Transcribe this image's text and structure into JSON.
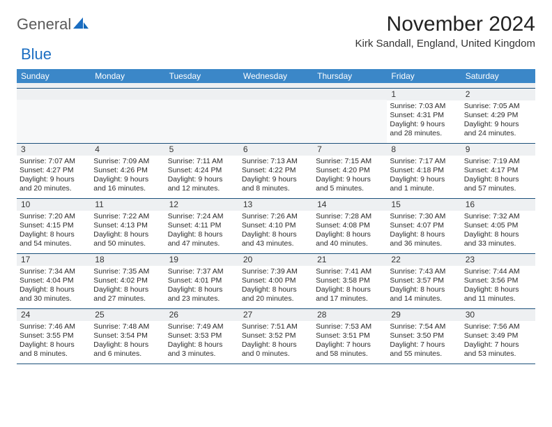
{
  "logo": {
    "part1": "General",
    "part2": "Blue"
  },
  "title": "November 2024",
  "location": "Kirk Sandall, England, United Kingdom",
  "colors": {
    "header_bg": "#3b87c8",
    "divider": "#1b4f7a",
    "daynum_bg": "#eef0f2",
    "logo_gray": "#5a5a5a",
    "logo_blue": "#1b6ec2"
  },
  "dow": [
    "Sunday",
    "Monday",
    "Tuesday",
    "Wednesday",
    "Thursday",
    "Friday",
    "Saturday"
  ],
  "weeks": [
    [
      null,
      null,
      null,
      null,
      null,
      {
        "n": "1",
        "sr": "7:03 AM",
        "ss": "4:31 PM",
        "dl": "9 hours and 28 minutes."
      },
      {
        "n": "2",
        "sr": "7:05 AM",
        "ss": "4:29 PM",
        "dl": "9 hours and 24 minutes."
      }
    ],
    [
      {
        "n": "3",
        "sr": "7:07 AM",
        "ss": "4:27 PM",
        "dl": "9 hours and 20 minutes."
      },
      {
        "n": "4",
        "sr": "7:09 AM",
        "ss": "4:26 PM",
        "dl": "9 hours and 16 minutes."
      },
      {
        "n": "5",
        "sr": "7:11 AM",
        "ss": "4:24 PM",
        "dl": "9 hours and 12 minutes."
      },
      {
        "n": "6",
        "sr": "7:13 AM",
        "ss": "4:22 PM",
        "dl": "9 hours and 8 minutes."
      },
      {
        "n": "7",
        "sr": "7:15 AM",
        "ss": "4:20 PM",
        "dl": "9 hours and 5 minutes."
      },
      {
        "n": "8",
        "sr": "7:17 AM",
        "ss": "4:18 PM",
        "dl": "9 hours and 1 minute."
      },
      {
        "n": "9",
        "sr": "7:19 AM",
        "ss": "4:17 PM",
        "dl": "8 hours and 57 minutes."
      }
    ],
    [
      {
        "n": "10",
        "sr": "7:20 AM",
        "ss": "4:15 PM",
        "dl": "8 hours and 54 minutes."
      },
      {
        "n": "11",
        "sr": "7:22 AM",
        "ss": "4:13 PM",
        "dl": "8 hours and 50 minutes."
      },
      {
        "n": "12",
        "sr": "7:24 AM",
        "ss": "4:11 PM",
        "dl": "8 hours and 47 minutes."
      },
      {
        "n": "13",
        "sr": "7:26 AM",
        "ss": "4:10 PM",
        "dl": "8 hours and 43 minutes."
      },
      {
        "n": "14",
        "sr": "7:28 AM",
        "ss": "4:08 PM",
        "dl": "8 hours and 40 minutes."
      },
      {
        "n": "15",
        "sr": "7:30 AM",
        "ss": "4:07 PM",
        "dl": "8 hours and 36 minutes."
      },
      {
        "n": "16",
        "sr": "7:32 AM",
        "ss": "4:05 PM",
        "dl": "8 hours and 33 minutes."
      }
    ],
    [
      {
        "n": "17",
        "sr": "7:34 AM",
        "ss": "4:04 PM",
        "dl": "8 hours and 30 minutes."
      },
      {
        "n": "18",
        "sr": "7:35 AM",
        "ss": "4:02 PM",
        "dl": "8 hours and 27 minutes."
      },
      {
        "n": "19",
        "sr": "7:37 AM",
        "ss": "4:01 PM",
        "dl": "8 hours and 23 minutes."
      },
      {
        "n": "20",
        "sr": "7:39 AM",
        "ss": "4:00 PM",
        "dl": "8 hours and 20 minutes."
      },
      {
        "n": "21",
        "sr": "7:41 AM",
        "ss": "3:58 PM",
        "dl": "8 hours and 17 minutes."
      },
      {
        "n": "22",
        "sr": "7:43 AM",
        "ss": "3:57 PM",
        "dl": "8 hours and 14 minutes."
      },
      {
        "n": "23",
        "sr": "7:44 AM",
        "ss": "3:56 PM",
        "dl": "8 hours and 11 minutes."
      }
    ],
    [
      {
        "n": "24",
        "sr": "7:46 AM",
        "ss": "3:55 PM",
        "dl": "8 hours and 8 minutes."
      },
      {
        "n": "25",
        "sr": "7:48 AM",
        "ss": "3:54 PM",
        "dl": "8 hours and 6 minutes."
      },
      {
        "n": "26",
        "sr": "7:49 AM",
        "ss": "3:53 PM",
        "dl": "8 hours and 3 minutes."
      },
      {
        "n": "27",
        "sr": "7:51 AM",
        "ss": "3:52 PM",
        "dl": "8 hours and 0 minutes."
      },
      {
        "n": "28",
        "sr": "7:53 AM",
        "ss": "3:51 PM",
        "dl": "7 hours and 58 minutes."
      },
      {
        "n": "29",
        "sr": "7:54 AM",
        "ss": "3:50 PM",
        "dl": "7 hours and 55 minutes."
      },
      {
        "n": "30",
        "sr": "7:56 AM",
        "ss": "3:49 PM",
        "dl": "7 hours and 53 minutes."
      }
    ]
  ],
  "labels": {
    "sunrise": "Sunrise:",
    "sunset": "Sunset:",
    "daylight": "Daylight:"
  }
}
